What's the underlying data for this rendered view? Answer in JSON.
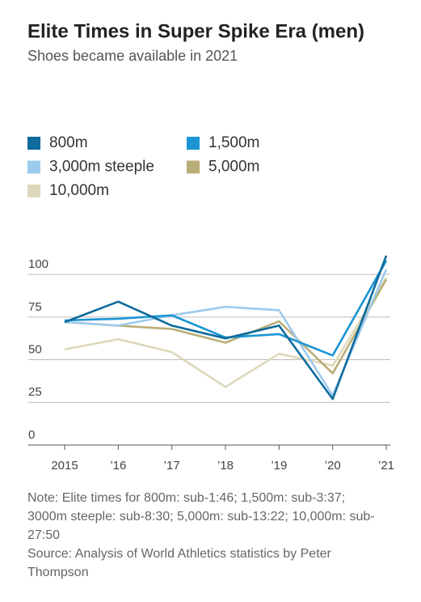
{
  "chart_data": {
    "type": "line",
    "title": "Elite Times in Super Spike Era (men)",
    "subtitle": "Shoes became available in 2021",
    "categories": [
      "2015",
      "’16",
      "’17",
      "’18",
      "’19",
      "’20",
      "’21"
    ],
    "series": [
      {
        "name": "800m",
        "color": "#0e6b9c",
        "values": [
          72,
          84,
          70,
          62.5,
          70,
          27,
          111
        ]
      },
      {
        "name": "1,500m",
        "color": "#1b95d4",
        "values": [
          73,
          74,
          76,
          63,
          65,
          52.5,
          108
        ]
      },
      {
        "name": "3,000m steeple",
        "color": "#9dcbee",
        "values": [
          72,
          70,
          76,
          81,
          79,
          29,
          103
        ]
      },
      {
        "name": "5,000m",
        "color": "#b9ae78",
        "values": [
          72,
          70,
          68,
          60,
          72.5,
          42,
          97
        ]
      },
      {
        "name": "10,000m",
        "color": "#ddd8bb",
        "values": [
          56,
          62,
          54.5,
          34,
          53.5,
          46.5,
          98
        ]
      }
    ],
    "ylim": [
      0,
      110
    ],
    "yticks": [
      0,
      25,
      50,
      75,
      100
    ],
    "grid": true,
    "note": "Note: Elite times for 800m: sub-1:46; 1,500m: sub-3:37; 3000m steeple: sub-8:30; 5,000m: sub-13:22; 10,000m: sub-27:50",
    "source": "Source: Analysis of World Athletics statistics by Peter Thompson"
  }
}
